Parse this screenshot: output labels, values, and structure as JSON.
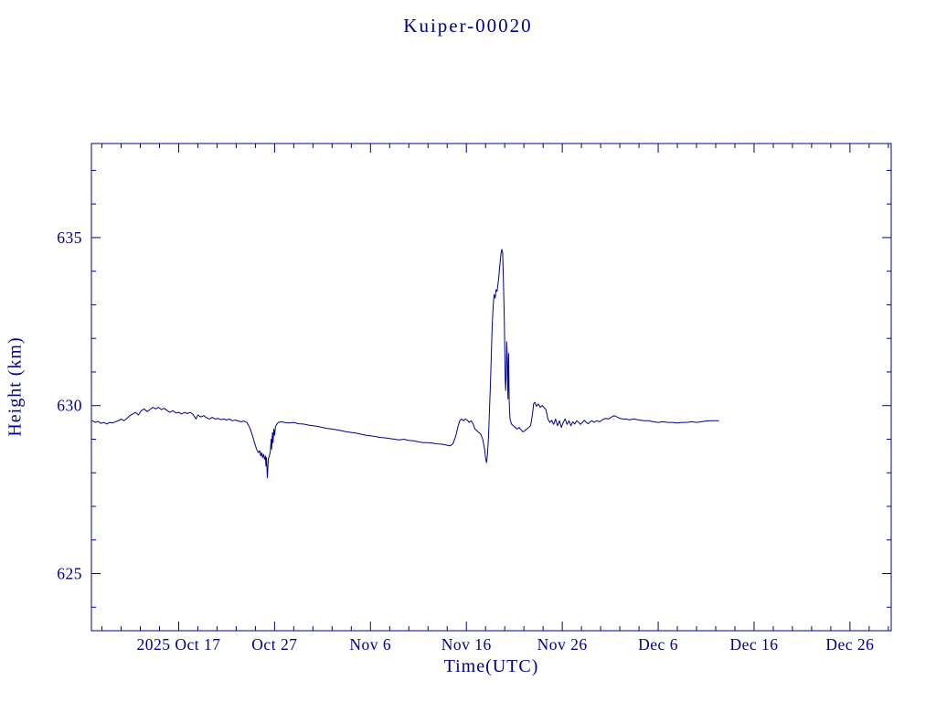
{
  "chart_data": {
    "type": "line",
    "title": "Kuiper-00020",
    "xlabel": "Time(UTC)",
    "ylabel": "Height (km)",
    "line_color": "#00008B",
    "background": "#ffffff",
    "grid": false,
    "legend": "none",
    "x_axis": {
      "unit": "days since 2025 Oct 17 00:00 UTC",
      "min": -9.1,
      "max": 74.3,
      "major_ticks": [
        {
          "t": 0,
          "label": "2025 Oct 17"
        },
        {
          "t": 10,
          "label": "Oct 27"
        },
        {
          "t": 20,
          "label": "Nov 6"
        },
        {
          "t": 30,
          "label": "Nov 16"
        },
        {
          "t": 40,
          "label": "Nov 26"
        },
        {
          "t": 50,
          "label": "Dec 6"
        },
        {
          "t": 60,
          "label": "Dec 16"
        },
        {
          "t": 70,
          "label": "Dec 26"
        }
      ],
      "minor_tick_step": 2
    },
    "y_axis": {
      "min": 623.3,
      "max": 637.8,
      "major_ticks": [
        {
          "v": 625,
          "label": "625"
        },
        {
          "v": 630,
          "label": "630"
        },
        {
          "v": 635,
          "label": "635"
        }
      ],
      "minor_tick_step": 1
    },
    "series": [
      {
        "name": "height",
        "points": [
          [
            -9.0,
            629.55
          ],
          [
            -8.7,
            629.5
          ],
          [
            -8.4,
            629.53
          ],
          [
            -8.1,
            629.47
          ],
          [
            -7.8,
            629.5
          ],
          [
            -7.5,
            629.45
          ],
          [
            -7.2,
            629.5
          ],
          [
            -6.9,
            629.48
          ],
          [
            -6.6,
            629.52
          ],
          [
            -6.3,
            629.55
          ],
          [
            -6.0,
            629.6
          ],
          [
            -5.7,
            629.55
          ],
          [
            -5.4,
            629.62
          ],
          [
            -5.1,
            629.7
          ],
          [
            -4.8,
            629.75
          ],
          [
            -4.5,
            629.8
          ],
          [
            -4.2,
            629.72
          ],
          [
            -3.9,
            629.85
          ],
          [
            -3.6,
            629.9
          ],
          [
            -3.3,
            629.82
          ],
          [
            -3.0,
            629.88
          ],
          [
            -2.7,
            629.95
          ],
          [
            -2.4,
            629.9
          ],
          [
            -2.1,
            629.95
          ],
          [
            -1.8,
            629.88
          ],
          [
            -1.5,
            629.92
          ],
          [
            -1.2,
            629.85
          ],
          [
            -0.9,
            629.8
          ],
          [
            -0.6,
            629.85
          ],
          [
            -0.3,
            629.78
          ],
          [
            0.0,
            629.8
          ],
          [
            0.3,
            629.75
          ],
          [
            0.6,
            629.8
          ],
          [
            0.9,
            629.76
          ],
          [
            1.2,
            629.8
          ],
          [
            1.5,
            629.74
          ],
          [
            1.8,
            629.6
          ],
          [
            2.0,
            629.72
          ],
          [
            2.3,
            629.66
          ],
          [
            2.6,
            629.7
          ],
          [
            2.9,
            629.64
          ],
          [
            3.2,
            629.6
          ],
          [
            3.5,
            629.65
          ],
          [
            3.8,
            629.6
          ],
          [
            4.1,
            629.62
          ],
          [
            4.4,
            629.58
          ],
          [
            4.7,
            629.6
          ],
          [
            5.0,
            629.57
          ],
          [
            5.3,
            629.6
          ],
          [
            5.6,
            629.55
          ],
          [
            5.9,
            629.57
          ],
          [
            6.2,
            629.54
          ],
          [
            6.5,
            629.52
          ],
          [
            6.8,
            629.54
          ],
          [
            7.1,
            629.5
          ],
          [
            7.3,
            629.4
          ],
          [
            7.5,
            629.28
          ],
          [
            7.7,
            629.1
          ],
          [
            7.9,
            628.9
          ],
          [
            8.1,
            628.72
          ],
          [
            8.3,
            628.6
          ],
          [
            8.45,
            628.66
          ],
          [
            8.55,
            628.5
          ],
          [
            8.65,
            628.6
          ],
          [
            8.75,
            628.45
          ],
          [
            8.85,
            628.55
          ],
          [
            8.95,
            628.4
          ],
          [
            9.05,
            628.5
          ],
          [
            9.1,
            628.2
          ],
          [
            9.15,
            628.45
          ],
          [
            9.25,
            627.85
          ],
          [
            9.35,
            628.42
          ],
          [
            9.45,
            628.5
          ],
          [
            9.55,
            628.62
          ],
          [
            9.65,
            629.0
          ],
          [
            9.7,
            628.7
          ],
          [
            9.78,
            629.2
          ],
          [
            9.84,
            628.9
          ],
          [
            9.92,
            629.3
          ],
          [
            10.0,
            629.12
          ],
          [
            10.1,
            629.38
          ],
          [
            10.25,
            629.45
          ],
          [
            10.4,
            629.5
          ],
          [
            10.7,
            629.52
          ],
          [
            11.0,
            629.5
          ],
          [
            11.5,
            629.48
          ],
          [
            12.0,
            629.5
          ],
          [
            12.5,
            629.46
          ],
          [
            13.0,
            629.45
          ],
          [
            13.5,
            629.42
          ],
          [
            14.0,
            629.4
          ],
          [
            14.5,
            629.38
          ],
          [
            15.0,
            629.35
          ],
          [
            15.5,
            629.32
          ],
          [
            16.0,
            629.3
          ],
          [
            16.5,
            629.28
          ],
          [
            17.0,
            629.25
          ],
          [
            17.5,
            629.22
          ],
          [
            18.0,
            629.2
          ],
          [
            18.5,
            629.18
          ],
          [
            19.0,
            629.15
          ],
          [
            19.5,
            629.12
          ],
          [
            20.0,
            629.1
          ],
          [
            20.5,
            629.08
          ],
          [
            21.0,
            629.05
          ],
          [
            21.5,
            629.04
          ],
          [
            22.0,
            629.02
          ],
          [
            22.5,
            629.0
          ],
          [
            23.0,
            628.98
          ],
          [
            23.5,
            629.0
          ],
          [
            24.0,
            628.96
          ],
          [
            24.5,
            628.95
          ],
          [
            25.0,
            628.92
          ],
          [
            25.5,
            628.9
          ],
          [
            26.0,
            628.9
          ],
          [
            26.5,
            628.88
          ],
          [
            27.0,
            628.86
          ],
          [
            27.5,
            628.85
          ],
          [
            28.0,
            628.82
          ],
          [
            28.3,
            628.8
          ],
          [
            28.6,
            628.86
          ],
          [
            28.9,
            629.1
          ],
          [
            29.1,
            629.35
          ],
          [
            29.3,
            629.55
          ],
          [
            29.5,
            629.6
          ],
          [
            29.7,
            629.55
          ],
          [
            29.9,
            629.6
          ],
          [
            30.1,
            629.56
          ],
          [
            30.3,
            629.5
          ],
          [
            30.5,
            629.55
          ],
          [
            30.7,
            629.45
          ],
          [
            30.9,
            629.3
          ],
          [
            31.1,
            629.25
          ],
          [
            31.3,
            629.2
          ],
          [
            31.5,
            629.15
          ],
          [
            31.7,
            629.0
          ],
          [
            31.9,
            628.7
          ],
          [
            32.0,
            628.45
          ],
          [
            32.1,
            628.3
          ],
          [
            32.2,
            628.55
          ],
          [
            32.3,
            629.05
          ],
          [
            32.4,
            629.8
          ],
          [
            32.5,
            630.6
          ],
          [
            32.6,
            631.5
          ],
          [
            32.7,
            632.4
          ],
          [
            32.8,
            633.0
          ],
          [
            32.9,
            633.3
          ],
          [
            33.0,
            633.2
          ],
          [
            33.1,
            633.45
          ],
          [
            33.2,
            633.4
          ],
          [
            33.35,
            633.75
          ],
          [
            33.5,
            634.2
          ],
          [
            33.6,
            634.5
          ],
          [
            33.7,
            634.65
          ],
          [
            33.78,
            634.55
          ],
          [
            33.85,
            633.9
          ],
          [
            33.95,
            632.6
          ],
          [
            34.05,
            630.8
          ],
          [
            34.1,
            630.45
          ],
          [
            34.15,
            630.9
          ],
          [
            34.2,
            631.9
          ],
          [
            34.27,
            631.4
          ],
          [
            34.33,
            630.2
          ],
          [
            34.4,
            631.55
          ],
          [
            34.47,
            630.1
          ],
          [
            34.55,
            629.6
          ],
          [
            34.7,
            629.45
          ],
          [
            34.9,
            629.4
          ],
          [
            35.1,
            629.35
          ],
          [
            35.3,
            629.3
          ],
          [
            35.5,
            629.35
          ],
          [
            35.7,
            629.28
          ],
          [
            35.9,
            629.22
          ],
          [
            36.1,
            629.25
          ],
          [
            36.3,
            629.3
          ],
          [
            36.5,
            629.35
          ],
          [
            36.7,
            629.4
          ],
          [
            36.9,
            629.75
          ],
          [
            37.0,
            630.05
          ],
          [
            37.15,
            630.1
          ],
          [
            37.3,
            629.98
          ],
          [
            37.5,
            630.05
          ],
          [
            37.7,
            629.95
          ],
          [
            37.9,
            630.0
          ],
          [
            38.1,
            629.94
          ],
          [
            38.3,
            629.88
          ],
          [
            38.5,
            629.6
          ],
          [
            38.7,
            629.5
          ],
          [
            38.9,
            629.56
          ],
          [
            39.1,
            629.44
          ],
          [
            39.3,
            629.6
          ],
          [
            39.5,
            629.4
          ],
          [
            39.7,
            629.55
          ],
          [
            39.9,
            629.35
          ],
          [
            40.1,
            629.5
          ],
          [
            40.3,
            629.6
          ],
          [
            40.5,
            629.44
          ],
          [
            40.7,
            629.55
          ],
          [
            40.9,
            629.4
          ],
          [
            41.1,
            629.52
          ],
          [
            41.3,
            629.45
          ],
          [
            41.5,
            629.55
          ],
          [
            41.7,
            629.5
          ],
          [
            41.9,
            629.44
          ],
          [
            42.1,
            629.5
          ],
          [
            42.3,
            629.56
          ],
          [
            42.5,
            629.5
          ],
          [
            42.7,
            629.46
          ],
          [
            42.9,
            629.52
          ],
          [
            43.1,
            629.55
          ],
          [
            43.3,
            629.5
          ],
          [
            43.6,
            629.55
          ],
          [
            43.9,
            629.52
          ],
          [
            44.2,
            629.58
          ],
          [
            44.5,
            629.62
          ],
          [
            44.8,
            629.6
          ],
          [
            45.1,
            629.65
          ],
          [
            45.4,
            629.7
          ],
          [
            45.7,
            629.66
          ],
          [
            46.0,
            629.62
          ],
          [
            46.3,
            629.6
          ],
          [
            46.6,
            629.6
          ],
          [
            47.0,
            629.58
          ],
          [
            47.5,
            629.6
          ],
          [
            48.0,
            629.57
          ],
          [
            48.5,
            629.55
          ],
          [
            49.0,
            629.55
          ],
          [
            49.5,
            629.52
          ],
          [
            50.0,
            629.5
          ],
          [
            50.5,
            629.52
          ],
          [
            51.0,
            629.5
          ],
          [
            51.5,
            629.5
          ],
          [
            52.0,
            629.48
          ],
          [
            52.5,
            629.5
          ],
          [
            53.0,
            629.5
          ],
          [
            53.5,
            629.52
          ],
          [
            54.0,
            629.5
          ],
          [
            54.5,
            629.52
          ],
          [
            55.0,
            629.54
          ],
          [
            55.5,
            629.55
          ],
          [
            56.0,
            629.55
          ],
          [
            56.3,
            629.55
          ]
        ]
      }
    ]
  }
}
